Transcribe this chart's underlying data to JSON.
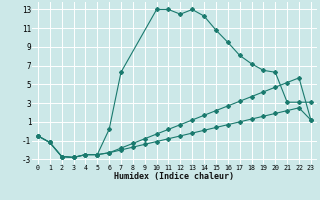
{
  "xlabel": "Humidex (Indice chaleur)",
  "ylabel": "",
  "background_color": "#cce8e8",
  "grid_color": "#ffffff",
  "line_color": "#1a7a6e",
  "xlim": [
    -0.5,
    23.5
  ],
  "ylim": [
    -3.5,
    13.8
  ],
  "xticks": [
    0,
    1,
    2,
    3,
    4,
    5,
    6,
    7,
    8,
    9,
    10,
    11,
    12,
    13,
    14,
    15,
    16,
    17,
    18,
    19,
    20,
    21,
    22,
    23
  ],
  "yticks": [
    -3,
    -1,
    1,
    3,
    5,
    7,
    9,
    11,
    13
  ],
  "series": [
    {
      "x": [
        0,
        1,
        2,
        3,
        4,
        5,
        6,
        7,
        10,
        11,
        12,
        13,
        14,
        15,
        16,
        17,
        18,
        19,
        20,
        21,
        22,
        23
      ],
      "y": [
        -0.5,
        -1.2,
        -2.7,
        -2.8,
        -2.5,
        -2.5,
        0.2,
        6.3,
        13.0,
        13.0,
        12.5,
        13.0,
        12.3,
        10.8,
        9.5,
        8.1,
        7.2,
        6.5,
        6.3,
        3.1,
        3.1,
        3.1
      ]
    },
    {
      "x": [
        0,
        1,
        2,
        3,
        4,
        5,
        6,
        7,
        8,
        9,
        10,
        11,
        12,
        13,
        14,
        15,
        16,
        17,
        18,
        19,
        20,
        21,
        22,
        23
      ],
      "y": [
        -0.5,
        -1.2,
        -2.7,
        -2.8,
        -2.5,
        -2.5,
        -2.3,
        -1.8,
        -1.3,
        -0.8,
        -0.3,
        0.2,
        0.7,
        1.2,
        1.7,
        2.2,
        2.7,
        3.2,
        3.7,
        4.2,
        4.7,
        5.2,
        5.7,
        1.2
      ]
    },
    {
      "x": [
        0,
        1,
        2,
        3,
        4,
        5,
        6,
        7,
        8,
        9,
        10,
        11,
        12,
        13,
        14,
        15,
        16,
        17,
        18,
        19,
        20,
        21,
        22,
        23
      ],
      "y": [
        -0.5,
        -1.2,
        -2.7,
        -2.8,
        -2.5,
        -2.5,
        -2.3,
        -2.0,
        -1.7,
        -1.4,
        -1.1,
        -0.8,
        -0.5,
        -0.2,
        0.1,
        0.4,
        0.7,
        1.0,
        1.3,
        1.6,
        1.9,
        2.2,
        2.5,
        1.2
      ]
    }
  ]
}
